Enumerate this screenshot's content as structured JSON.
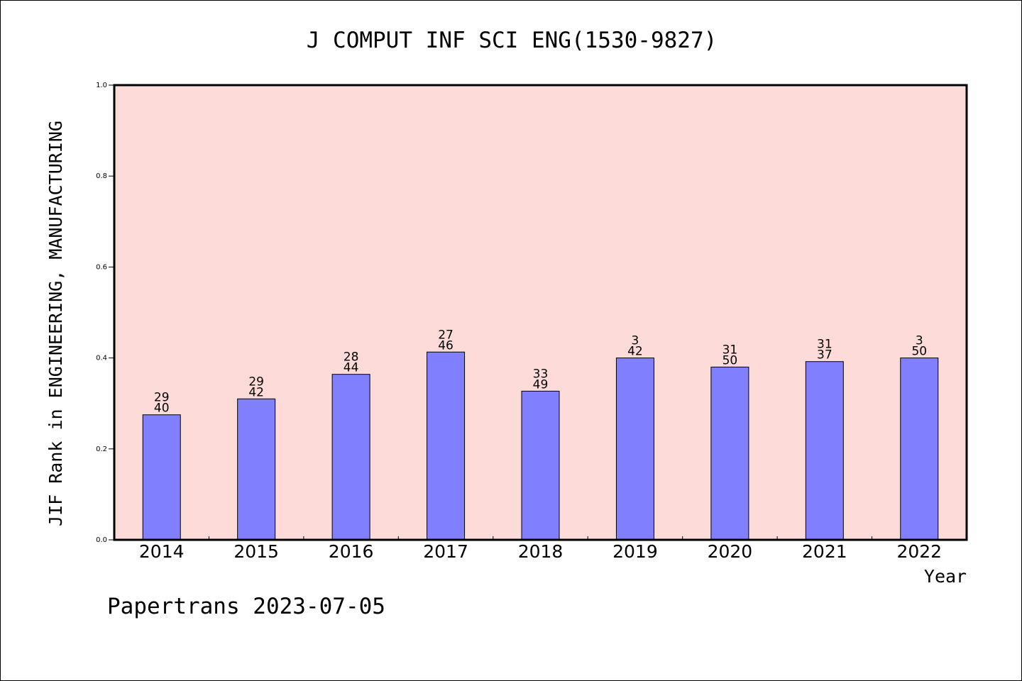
{
  "chart_data": {
    "type": "bar",
    "title": "J COMPUT INF SCI ENG(1530-9827)",
    "xlabel": "Year",
    "ylabel": "JIF Rank in ENGINEERING, MANUFACTURING",
    "ylim": [
      0.0,
      1.0
    ],
    "yticks": [
      "0.0",
      "0.2",
      "0.4",
      "0.6",
      "0.8",
      "1.0"
    ],
    "categories": [
      "2014",
      "2015",
      "2016",
      "2017",
      "2018",
      "2019",
      "2020",
      "2021",
      "2022"
    ],
    "values": [
      0.275,
      0.31,
      0.364,
      0.413,
      0.327,
      0.4,
      0.38,
      0.392,
      0.4
    ],
    "rank_labels": [
      {
        "top": "29",
        "bottom": "40"
      },
      {
        "top": "29",
        "bottom": "42"
      },
      {
        "top": "28",
        "bottom": "44"
      },
      {
        "top": "27",
        "bottom": "46"
      },
      {
        "top": "33",
        "bottom": "49"
      },
      {
        "top": "3",
        "bottom": "42"
      },
      {
        "top": "31",
        "bottom": "50"
      },
      {
        "top": "31",
        "bottom": "37"
      },
      {
        "top": "3",
        "bottom": "50"
      }
    ],
    "grid": false,
    "colors": {
      "bar": "#8080ff",
      "plot_background": "#fddbd8",
      "axis": "#000000"
    }
  },
  "footer": "Papertrans 2023-07-05"
}
